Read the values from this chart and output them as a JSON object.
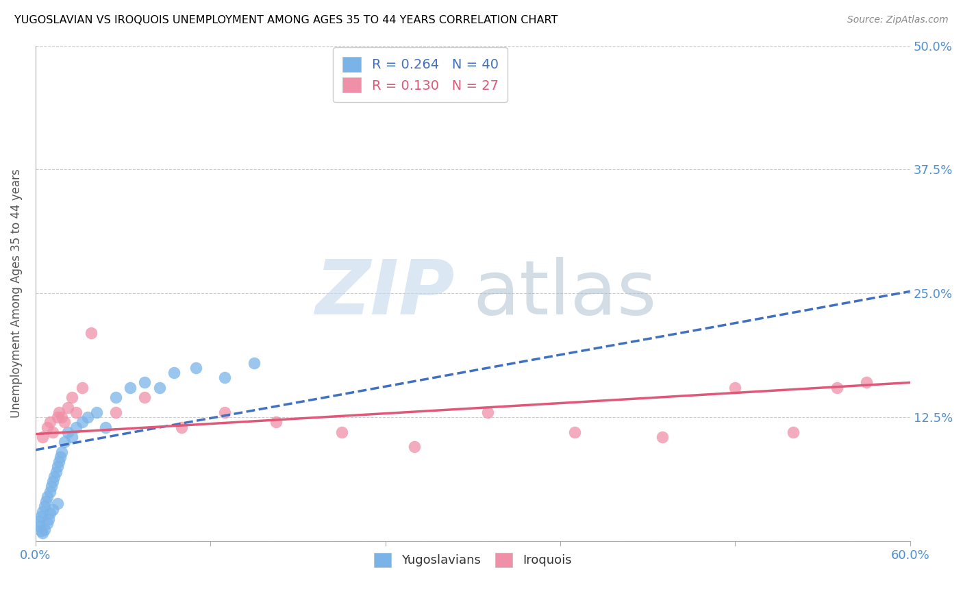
{
  "title": "YUGOSLAVIAN VS IROQUOIS UNEMPLOYMENT AMONG AGES 35 TO 44 YEARS CORRELATION CHART",
  "source": "Source: ZipAtlas.com",
  "ylabel": "Unemployment Among Ages 35 to 44 years",
  "xlim": [
    0.0,
    0.6
  ],
  "ylim": [
    0.0,
    0.5
  ],
  "xticks": [
    0.0,
    0.12,
    0.24,
    0.36,
    0.48,
    0.6
  ],
  "yticks": [
    0.0,
    0.125,
    0.25,
    0.375,
    0.5
  ],
  "xtick_labels_show": [
    "0.0%",
    "60.0%"
  ],
  "ytick_labels": [
    "",
    "12.5%",
    "25.0%",
    "37.5%",
    "50.0%"
  ],
  "yugoslav_color": "#7ab3e8",
  "iroquois_color": "#f090a8",
  "yugoslav_line_color": "#4070c0",
  "iroquois_line_color": "#e05878",
  "background_color": "#ffffff",
  "grid_color": "#cccccc",
  "axis_tick_color": "#5090d0",
  "title_color": "#000000",
  "title_fontsize": 11.5,
  "source_color": "#888888",
  "yugoslav_x": [
    0.002,
    0.003,
    0.004,
    0.004,
    0.005,
    0.005,
    0.006,
    0.006,
    0.007,
    0.008,
    0.008,
    0.009,
    0.01,
    0.01,
    0.011,
    0.012,
    0.012,
    0.013,
    0.014,
    0.015,
    0.015,
    0.016,
    0.017,
    0.018,
    0.02,
    0.022,
    0.025,
    0.028,
    0.032,
    0.036,
    0.042,
    0.048,
    0.055,
    0.065,
    0.075,
    0.085,
    0.095,
    0.11,
    0.13,
    0.15
  ],
  "yugoslav_y": [
    0.02,
    0.015,
    0.025,
    0.01,
    0.03,
    0.008,
    0.035,
    0.012,
    0.04,
    0.045,
    0.018,
    0.022,
    0.05,
    0.028,
    0.055,
    0.06,
    0.032,
    0.065,
    0.07,
    0.075,
    0.038,
    0.08,
    0.085,
    0.09,
    0.1,
    0.11,
    0.105,
    0.115,
    0.12,
    0.125,
    0.13,
    0.115,
    0.145,
    0.155,
    0.16,
    0.155,
    0.17,
    0.175,
    0.165,
    0.18
  ],
  "iroquois_x": [
    0.005,
    0.008,
    0.01,
    0.012,
    0.015,
    0.016,
    0.018,
    0.02,
    0.022,
    0.025,
    0.028,
    0.032,
    0.038,
    0.055,
    0.075,
    0.1,
    0.13,
    0.165,
    0.21,
    0.26,
    0.31,
    0.37,
    0.43,
    0.48,
    0.52,
    0.55,
    0.57
  ],
  "iroquois_y": [
    0.105,
    0.115,
    0.12,
    0.11,
    0.125,
    0.13,
    0.125,
    0.12,
    0.135,
    0.145,
    0.13,
    0.155,
    0.21,
    0.13,
    0.145,
    0.115,
    0.13,
    0.12,
    0.11,
    0.095,
    0.13,
    0.11,
    0.105,
    0.155,
    0.11,
    0.155,
    0.16
  ],
  "yug_regress_x0": 0.0,
  "yug_regress_y0": 0.092,
  "yug_regress_x1": 0.6,
  "yug_regress_y1": 0.252,
  "iro_regress_x0": 0.0,
  "iro_regress_y0": 0.108,
  "iro_regress_x1": 0.6,
  "iro_regress_y1": 0.16
}
